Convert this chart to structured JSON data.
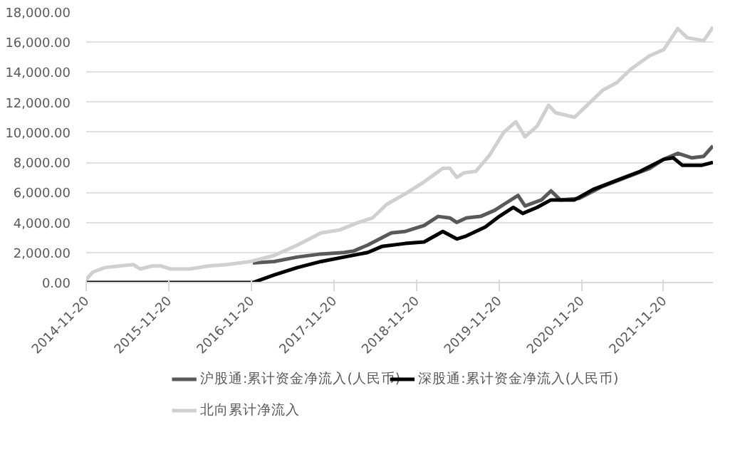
{
  "chart_data": {
    "type": "line",
    "xlim": [
      "2014-11-20",
      "2022-06-26"
    ],
    "xticks": [
      "2014-11-20",
      "2015-11-20",
      "2016-11-20",
      "2017-11-20",
      "2018-11-20",
      "2019-11-20",
      "2020-11-20",
      "2021-11-20"
    ],
    "ylim": [
      0,
      18000
    ],
    "yticks": [
      {
        "value": 0,
        "label": "0.00"
      },
      {
        "value": 2000,
        "label": "2,000.00"
      },
      {
        "value": 4000,
        "label": "4,000.00"
      },
      {
        "value": 6000,
        "label": "6,000.00"
      },
      {
        "value": 8000,
        "label": "8,000.00"
      },
      {
        "value": 10000,
        "label": "10,000.00"
      },
      {
        "value": 12000,
        "label": "12,000.00"
      },
      {
        "value": 14000,
        "label": "14,000.00"
      },
      {
        "value": 16000,
        "label": "16,000.00"
      },
      {
        "value": 18000,
        "label": "18,000.00"
      }
    ],
    "grid": "y",
    "legend": "bottom",
    "line_style": "solid",
    "series": [
      {
        "name": "沪股通:累计资金净流入(人民币)",
        "color": "#595959",
        "x": [
          "2016-11-27",
          "2017-03-01",
          "2017-06-13",
          "2017-09-25",
          "2018-01-06",
          "2018-02-17",
          "2018-04-20",
          "2018-08-02",
          "2018-10-03",
          "2018-12-25",
          "2019-02-25",
          "2019-04-18",
          "2019-05-19",
          "2019-06-30",
          "2019-09-01",
          "2019-11-02",
          "2019-12-13",
          "2020-02-14",
          "2020-03-16",
          "2020-05-28",
          "2020-07-09",
          "2020-08-19",
          "2020-11-11",
          "2021-02-23",
          "2021-06-07",
          "2021-09-19",
          "2021-11-20",
          "2022-01-21",
          "2022-03-25",
          "2022-05-16",
          "2022-06-26"
        ],
        "values": [
          1300,
          1400,
          1700,
          1900,
          2000,
          2100,
          2500,
          3300,
          3400,
          3800,
          4400,
          4300,
          4000,
          4300,
          4400,
          4800,
          5200,
          5800,
          5100,
          5500,
          6100,
          5500,
          5600,
          6400,
          7000,
          7600,
          8200,
          8600,
          8300,
          8400,
          9100
        ]
      },
      {
        "name": "深股通:累计资金净流入(人民币)",
        "color": "#000000",
        "x": [
          "2014-11-20",
          "2016-11-27",
          "2017-03-01",
          "2017-06-13",
          "2017-09-25",
          "2018-01-06",
          "2018-04-20",
          "2018-06-21",
          "2018-10-03",
          "2018-12-25",
          "2019-03-18",
          "2019-05-19",
          "2019-06-30",
          "2019-09-22",
          "2019-11-23",
          "2020-01-24",
          "2020-03-06",
          "2020-05-08",
          "2020-07-09",
          "2020-10-21",
          "2021-01-12",
          "2021-04-26",
          "2021-08-08",
          "2021-11-20",
          "2022-01-01",
          "2022-02-11",
          "2022-05-06",
          "2022-06-26"
        ],
        "values": [
          0,
          0,
          500,
          1000,
          1400,
          1700,
          2000,
          2400,
          2600,
          2700,
          3400,
          2900,
          3100,
          3700,
          4400,
          5000,
          4600,
          5000,
          5500,
          5500,
          6200,
          6800,
          7400,
          8200,
          8300,
          7800,
          7800,
          8000
        ]
      },
      {
        "name": "北向累计净流入",
        "color": "#d0d0d0",
        "x": [
          "2014-11-20",
          "2014-12-20",
          "2015-02-12",
          "2015-04-15",
          "2015-06-16",
          "2015-07-17",
          "2015-09-07",
          "2015-10-18",
          "2015-11-29",
          "2016-02-20",
          "2016-05-14",
          "2016-08-05",
          "2016-11-17",
          "2017-03-01",
          "2017-06-13",
          "2017-09-25",
          "2017-12-16",
          "2018-03-09",
          "2018-05-11",
          "2018-07-12",
          "2018-10-03",
          "2018-12-25",
          "2019-03-18",
          "2019-04-18",
          "2019-05-19",
          "2019-06-20",
          "2019-08-11",
          "2019-10-12",
          "2019-12-13",
          "2020-02-04",
          "2020-03-16",
          "2020-05-08",
          "2020-06-28",
          "2020-07-30",
          "2020-10-21",
          "2020-12-02",
          "2021-02-23",
          "2021-04-26",
          "2021-06-27",
          "2021-09-19",
          "2021-11-20",
          "2022-01-21",
          "2022-03-04",
          "2022-05-16",
          "2022-06-26"
        ],
        "values": [
          200,
          700,
          1000,
          1100,
          1200,
          900,
          1100,
          1100,
          900,
          900,
          1100,
          1200,
          1400,
          1800,
          2500,
          3300,
          3500,
          4000,
          4300,
          5200,
          5900,
          6700,
          7600,
          7600,
          7000,
          7300,
          7400,
          8500,
          10000,
          10700,
          9700,
          10400,
          11800,
          11300,
          11000,
          11600,
          12800,
          13300,
          14200,
          15100,
          15500,
          16900,
          16300,
          16100,
          17000
        ]
      }
    ]
  }
}
